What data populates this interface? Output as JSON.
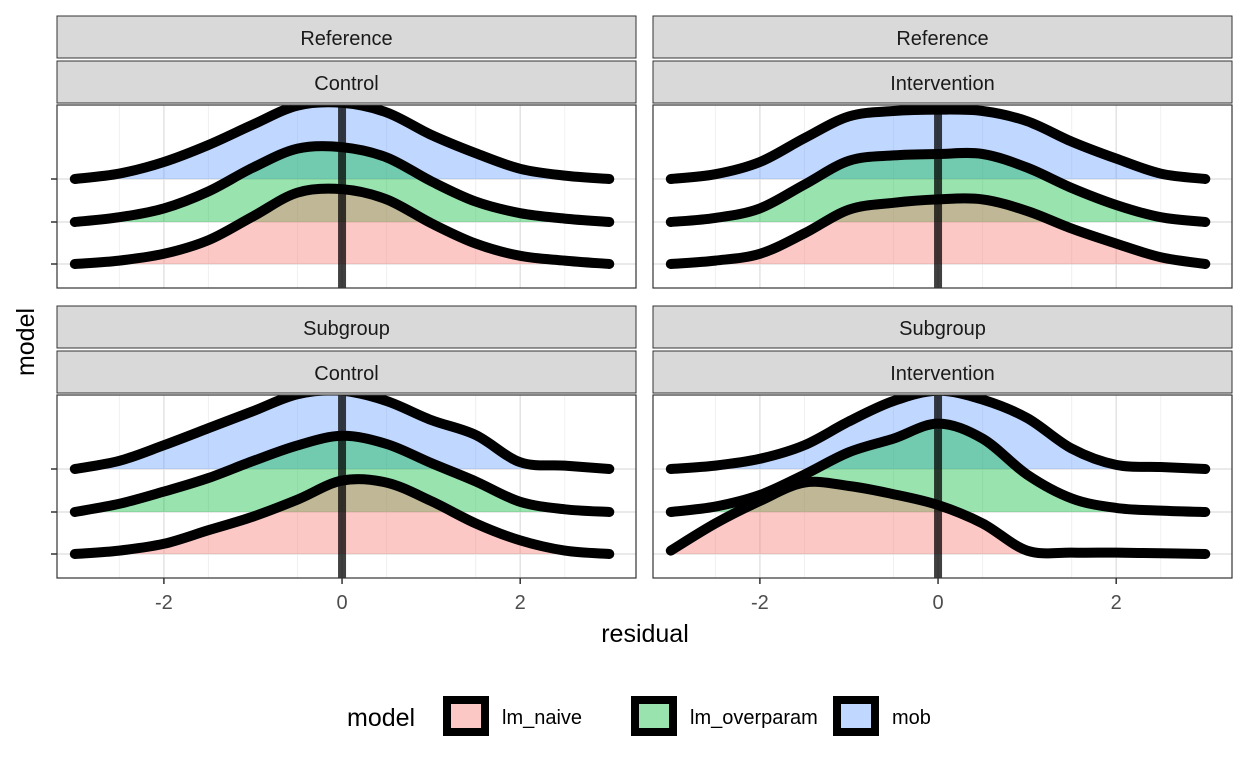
{
  "chart_data": {
    "type": "area",
    "xlabel": "residual",
    "ylabel": "model",
    "xlim": [
      -3.2,
      3.3
    ],
    "x_ticks": [
      "-2",
      "0",
      "2"
    ],
    "x_tick_values": [
      -2,
      0,
      2
    ],
    "vline_x": 0,
    "grid": true,
    "legend": {
      "title": "model",
      "position": "bottom",
      "entries": [
        "lm_naive",
        "lm_overparam",
        "mob"
      ]
    },
    "series_colors": {
      "lm_naive": "#F8766D",
      "lm_overparam": "#00BA38",
      "mob": "#619CFF"
    },
    "x": [
      -3,
      -2.5,
      -2,
      -1.5,
      -1,
      -0.5,
      0,
      0.5,
      1,
      1.5,
      2,
      2.5,
      3
    ],
    "panels": [
      {
        "row_strip": "Reference",
        "col_strip": "Control",
        "series": [
          {
            "name": "lm_naive",
            "values": [
              0.0,
              0.05,
              0.15,
              0.35,
              0.7,
              1.05,
              1.1,
              0.95,
              0.6,
              0.3,
              0.12,
              0.05,
              0.0
            ]
          },
          {
            "name": "lm_overparam",
            "values": [
              0.0,
              0.07,
              0.2,
              0.45,
              0.8,
              1.08,
              1.1,
              0.95,
              0.6,
              0.3,
              0.13,
              0.05,
              0.0
            ]
          },
          {
            "name": "mob",
            "values": [
              0.0,
              0.08,
              0.25,
              0.5,
              0.8,
              1.08,
              1.12,
              0.98,
              0.65,
              0.38,
              0.15,
              0.05,
              0.0
            ]
          }
        ]
      },
      {
        "row_strip": "Reference",
        "col_strip": "Intervention",
        "series": [
          {
            "name": "lm_naive",
            "values": [
              0.0,
              0.05,
              0.15,
              0.45,
              0.8,
              0.9,
              0.95,
              0.95,
              0.78,
              0.52,
              0.3,
              0.1,
              0.0
            ]
          },
          {
            "name": "lm_overparam",
            "values": [
              0.0,
              0.06,
              0.2,
              0.55,
              0.9,
              0.98,
              1.0,
              1.0,
              0.8,
              0.5,
              0.25,
              0.07,
              0.0
            ]
          },
          {
            "name": "mob",
            "values": [
              0.0,
              0.07,
              0.25,
              0.6,
              0.92,
              1.0,
              1.02,
              1.0,
              0.85,
              0.55,
              0.3,
              0.08,
              0.0
            ]
          }
        ]
      },
      {
        "row_strip": "Subgroup",
        "col_strip": "Control",
        "series": [
          {
            "name": "lm_naive",
            "values": [
              0.0,
              0.05,
              0.15,
              0.35,
              0.55,
              0.8,
              1.08,
              1.05,
              0.78,
              0.45,
              0.2,
              0.05,
              0.0
            ]
          },
          {
            "name": "lm_overparam",
            "values": [
              0.0,
              0.12,
              0.3,
              0.5,
              0.75,
              0.98,
              1.12,
              1.0,
              0.72,
              0.45,
              0.15,
              0.04,
              0.0
            ]
          },
          {
            "name": "mob",
            "values": [
              0.0,
              0.12,
              0.35,
              0.6,
              0.85,
              1.1,
              1.15,
              1.0,
              0.72,
              0.5,
              0.1,
              0.05,
              0.0
            ]
          }
        ]
      },
      {
        "row_strip": "Subgroup",
        "col_strip": "Intervention",
        "series": [
          {
            "name": "lm_naive",
            "values": [
              0.05,
              0.45,
              0.78,
              1.05,
              1.0,
              0.88,
              0.72,
              0.45,
              0.05,
              0.02,
              0.02,
              0.01,
              0.0
            ]
          },
          {
            "name": "lm_overparam",
            "values": [
              0.0,
              0.08,
              0.25,
              0.55,
              0.88,
              1.08,
              1.3,
              1.08,
              0.55,
              0.2,
              0.06,
              0.02,
              0.0
            ]
          },
          {
            "name": "mob",
            "values": [
              0.0,
              0.05,
              0.15,
              0.35,
              0.7,
              1.0,
              1.15,
              1.02,
              0.75,
              0.3,
              0.06,
              0.03,
              0.0
            ]
          }
        ]
      }
    ]
  }
}
